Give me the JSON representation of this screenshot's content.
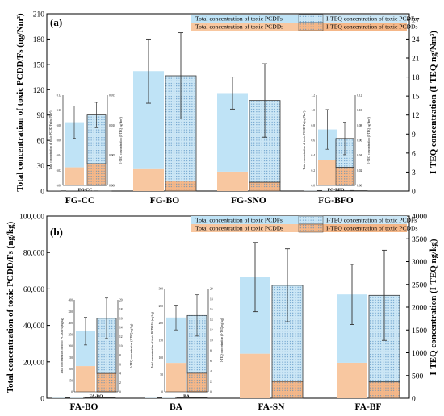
{
  "colors": {
    "pcdf": "#bfe3f6",
    "pcdd": "#f8c7a0",
    "teq_pcdf": "#cbe6f5",
    "teq_pcdd": "#f5b788",
    "dots": "#4a88bd",
    "edge": "#333333",
    "error": "#333333"
  },
  "chart_data": [
    {
      "type": "bar",
      "panel_label": "(a)",
      "ylabel": "Total concentration of toxic PCDD/Fs (ng/Nm³)",
      "y2label": "I-TEQ concentration (I-TEQ ng/Nm³)",
      "ylim": [
        0,
        210
      ],
      "yticks": [
        0,
        30,
        60,
        90,
        120,
        150,
        180,
        210
      ],
      "y2lim": [
        0,
        28
      ],
      "y2ticks": [
        0,
        3,
        6,
        9,
        12,
        15,
        18,
        21,
        24,
        27
      ],
      "categories": [
        "FG-CC",
        "FG-BO",
        "FG-SNO",
        "FG-BFO"
      ],
      "legend": {
        "pcdf_total": "Total concentration of toxic PCDFs",
        "pcdd_total": "Total concentration of toxic PCDDs",
        "pcdf_teq": "I-TEQ concentration of toxic PCDFs",
        "pcdd_teq": "I-TEQ concentration of toxic PCDDs"
      },
      "series": [
        {
          "name": "Total concentration of toxic PCDDs",
          "values": [
            0.05,
            26,
            23,
            0.12
          ]
        },
        {
          "name": "Total concentration of toxic PCDFs",
          "values": [
            0.09,
            116,
            93,
            0.24
          ]
        },
        {
          "name": "I-TEQ concentration of toxic PCDDs",
          "values": [
            0.003,
            1.6,
            1.4,
            0.012
          ]
        },
        {
          "name": "I-TEQ concentration of toxic PCDFs",
          "values": [
            0.011,
            16.6,
            12.9,
            0.046
          ]
        }
      ],
      "totals_error": {
        "totals": [
          0.14,
          142,
          116,
          0.36
        ],
        "errors": [
          0.06,
          38,
          19,
          0.18
        ]
      },
      "teq_error": {
        "totals": [
          0.014,
          18.2,
          14.3,
          0.058
        ],
        "errors": [
          0.004,
          6.8,
          5.8,
          0.022
        ]
      },
      "insets": [
        {
          "category": "FG-CC",
          "label": "FG-CC",
          "ylabel": "Total concentration of toxic PCDD/Fs (ng/Nm³)",
          "y2label": "I-TEQ concentration (I-TEQ ng/Nm³)",
          "yticks": [
            "0.00",
            "0.02",
            "0.04",
            "0.06",
            "0.08",
            "0.10",
            "0.12"
          ],
          "y2ticks": [
            "0.000",
            "0.005",
            "0.010",
            "0.015"
          ]
        },
        {
          "category": "FG-BFO",
          "label": "FG-BFO",
          "ylabel": "Total concentration of toxic PCDD/Fs (ng/Nm³)",
          "y2label": "I-TEQ concentration (I-TEQ ng/Nm³)",
          "yticks": [
            "0.0",
            "0.2",
            "0.4",
            "0.6",
            "0.8",
            "1.0",
            "1.2"
          ],
          "y2ticks": [
            "0.00",
            "0.02",
            "0.04",
            "0.06",
            "0.08",
            "0.10",
            "0.12"
          ]
        }
      ]
    },
    {
      "type": "bar",
      "panel_label": "(b)",
      "ylabel": "Total concentration of toxic PCDD/Fs (ng/kg)",
      "y2label": "I-TEQ concentration (I-TEQ ng/kg)",
      "ylim": [
        0,
        100000
      ],
      "yticks": [
        "0",
        "20,000",
        "40,000",
        "60,000",
        "80,000",
        "100,000"
      ],
      "ytick_values": [
        0,
        20000,
        40000,
        60000,
        80000,
        100000
      ],
      "y2lim": [
        0,
        4000
      ],
      "y2ticks": [
        0,
        500,
        1000,
        1500,
        2000,
        2500,
        3000,
        3500,
        4000
      ],
      "categories": [
        "FA-BO",
        "BA",
        "FA-SN",
        "FA-BF"
      ],
      "legend": {
        "pcdf_total": "Total concentration of toxic PCDFs",
        "pcdd_total": "Total concentration of toxic PCDDs",
        "pcdf_teq": "I-TEQ concentration of toxic PCDFs",
        "pcdd_teq": "I-TEQ concentration of toxic PCDDs"
      },
      "series": [
        {
          "name": "Total concentration of toxic PCDDs",
          "values": [
            60,
            48,
            24500,
            19500
          ]
        },
        {
          "name": "Total concentration of toxic PCDFs",
          "values": [
            200,
            175,
            42000,
            37500
          ]
        },
        {
          "name": "I-TEQ concentration of toxic PCDDs",
          "values": [
            2.8,
            2.6,
            370,
            360
          ]
        },
        {
          "name": "I-TEQ concentration of toxic PCDFs",
          "values": [
            11.5,
            11.7,
            2110,
            1900
          ]
        }
      ],
      "totals_error": {
        "totals": [
          260,
          223,
          66500,
          57000
        ],
        "errors": [
          65,
          60,
          19000,
          16500
        ]
      },
      "teq_error": {
        "totals": [
          14.3,
          14.3,
          2480,
          2260
        ],
        "errors": [
          4.6,
          4.4,
          800,
          990
        ]
      },
      "insets": [
        {
          "category": "FA-BO",
          "label": "FA-BO",
          "ylabel": "Total concentration of toxic PCDD/Fs (ng/kg)",
          "y2label": "I-TEQ concentration (I-TEQ ng/kg)",
          "yticks": [
            "0",
            "50",
            "100",
            "150",
            "200",
            "250",
            "300",
            "350",
            "400"
          ],
          "y2ticks": [
            "0",
            "2",
            "4",
            "6",
            "8",
            "10",
            "12",
            "14",
            "16",
            "18",
            "20"
          ]
        },
        {
          "category": "BA",
          "label": "BA",
          "ylabel": "Total concentration of toxic PCDD/Fs (ng/kg)",
          "y2label": "I-TEQ concentration (I-TEQ ng/kg)",
          "yticks": [
            "0",
            "50",
            "100",
            "150",
            "200",
            "250",
            "300"
          ],
          "y2ticks": [
            "0",
            "2",
            "4",
            "6",
            "8",
            "10",
            "12",
            "14",
            "16",
            "18",
            "20"
          ]
        }
      ]
    }
  ]
}
